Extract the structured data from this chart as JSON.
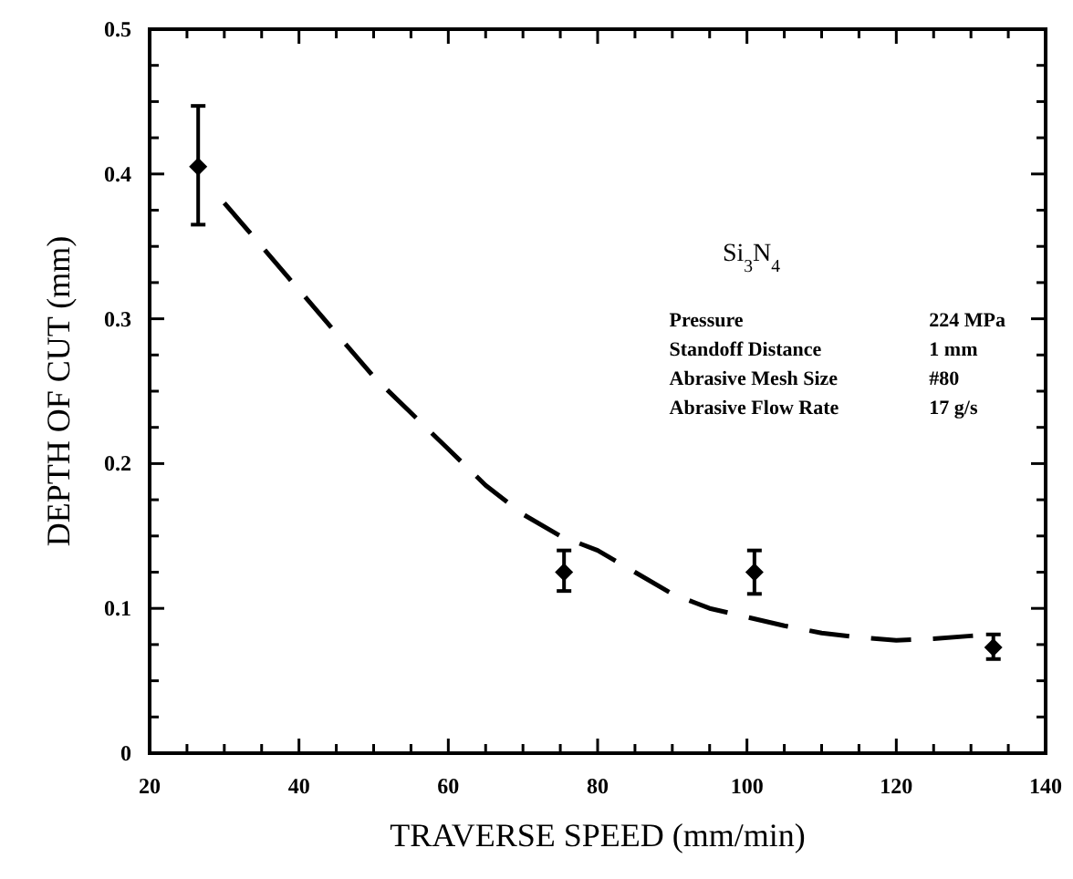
{
  "chart_data": {
    "type": "scatter",
    "xlabel": "TRAVERSE SPEED (mm/min)",
    "ylabel": "DEPTH OF CUT (mm)",
    "xlim": [
      20,
      140
    ],
    "ylim": [
      0,
      0.5
    ],
    "xticks": [
      20,
      {
        "value": 25,
        "label": null
      },
      {
        "value": 30,
        "label": null
      },
      {
        "value": 35,
        "label": null
      },
      40,
      {
        "value": 45,
        "label": null
      },
      {
        "value": 50,
        "label": null
      },
      {
        "value": 55,
        "label": null
      },
      60,
      {
        "value": 65,
        "label": null
      },
      {
        "value": 70,
        "label": null
      },
      {
        "value": 75,
        "label": null
      },
      80,
      {
        "value": 85,
        "label": null
      },
      {
        "value": 90,
        "label": null
      },
      {
        "value": 95,
        "label": null
      },
      100,
      {
        "value": 105,
        "label": null
      },
      {
        "value": 110,
        "label": null
      },
      {
        "value": 115,
        "label": null
      },
      120,
      {
        "value": 125,
        "label": null
      },
      {
        "value": 130,
        "label": null
      },
      {
        "value": 135,
        "label": null
      },
      140
    ],
    "yticks": [
      0,
      {
        "value": 0.025,
        "label": null
      },
      {
        "value": 0.05,
        "label": null
      },
      {
        "value": 0.075,
        "label": null
      },
      0.1,
      {
        "value": 0.125,
        "label": null
      },
      {
        "value": 0.15,
        "label": null
      },
      {
        "value": 0.175,
        "label": null
      },
      0.2,
      {
        "value": 0.225,
        "label": null
      },
      {
        "value": 0.25,
        "label": null
      },
      {
        "value": 0.275,
        "label": null
      },
      0.3,
      {
        "value": 0.325,
        "label": null
      },
      {
        "value": 0.35,
        "label": null
      },
      {
        "value": 0.375,
        "label": null
      },
      0.4,
      {
        "value": 0.425,
        "label": null
      },
      {
        "value": 0.45,
        "label": null
      },
      {
        "value": 0.475,
        "label": null
      },
      0.5
    ],
    "series": [
      {
        "color": "#000000",
        "marker": "diamond",
        "x": [
          26.5,
          75.5,
          101,
          133
        ],
        "values": [
          0.405,
          0.125,
          0.125,
          0.073
        ],
        "errors": [
          [
            0.365,
            0.447
          ],
          [
            0.112,
            0.14
          ],
          [
            0.11,
            0.14
          ],
          [
            0.065,
            0.082
          ]
        ]
      },
      {
        "type": "line",
        "color": "#000000",
        "marker": "none",
        "line_style": "dashed",
        "x": [
          30,
          35,
          40,
          45,
          50,
          55,
          60,
          65,
          70,
          75,
          80,
          85,
          90,
          95,
          100,
          105,
          110,
          115,
          120,
          125,
          130,
          133
        ],
        "values": [
          0.38,
          0.35,
          0.32,
          0.29,
          0.26,
          0.235,
          0.21,
          0.185,
          0.165,
          0.15,
          0.14,
          0.125,
          0.11,
          0.1,
          0.094,
          0.088,
          0.083,
          0.08,
          0.078,
          0.079,
          0.081,
          0.082
        ]
      }
    ],
    "annotations": [
      "Si$_{3}$N$_{4}$",
      "Pressure",
      "224 MPa",
      "Standoff Distance",
      "1 mm",
      "Abrasive Mesh Size",
      "#80",
      "Abrasive Flow Rate",
      "17 g/s"
    ]
  }
}
